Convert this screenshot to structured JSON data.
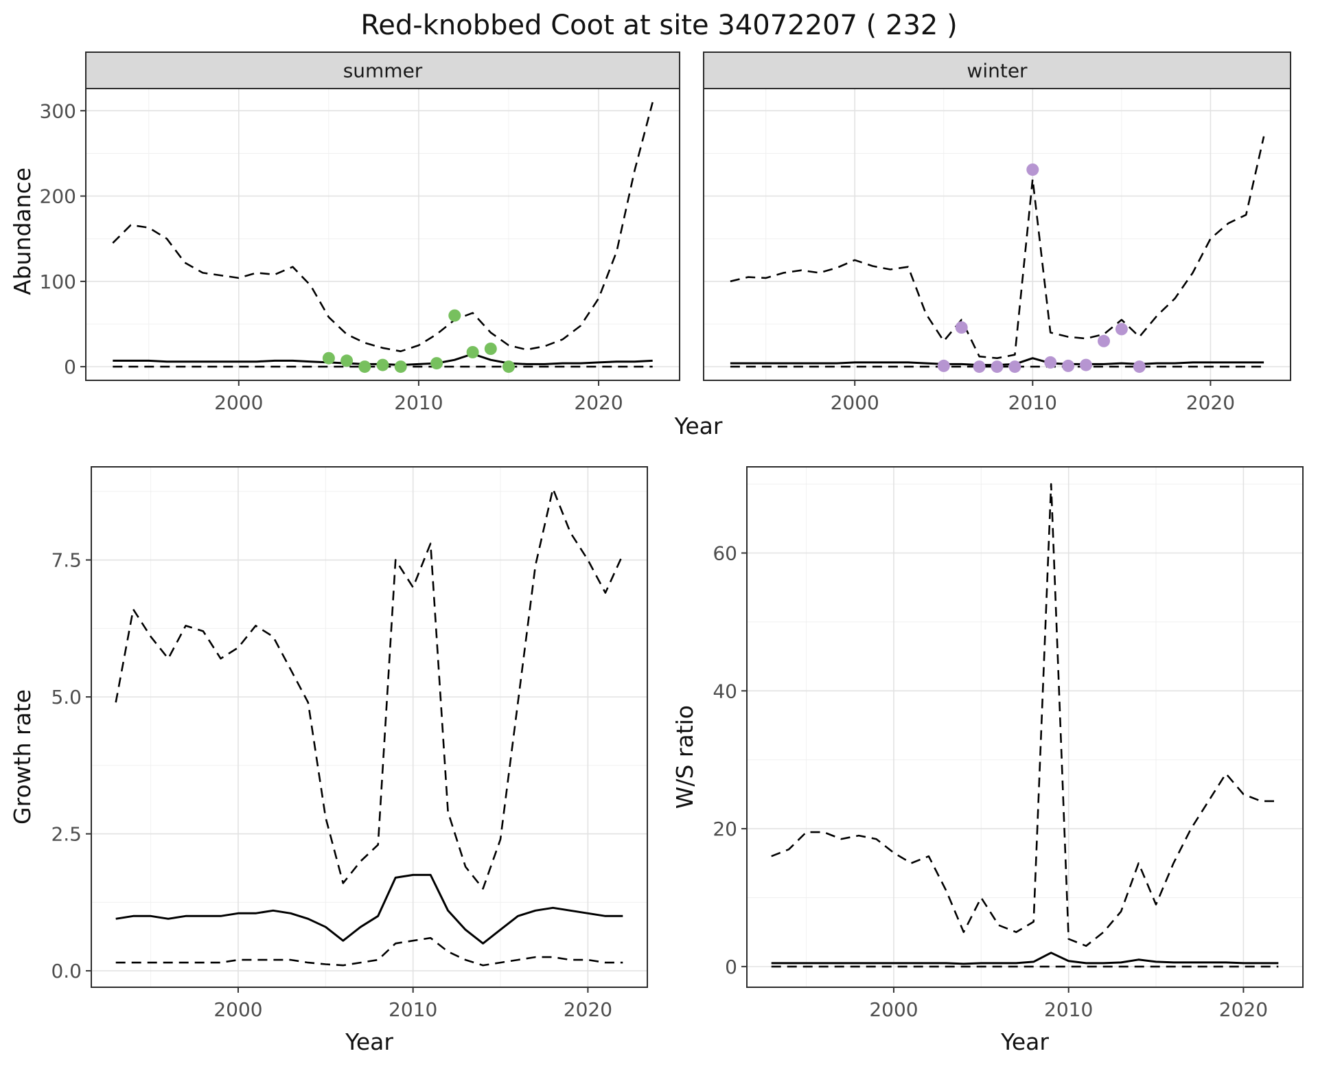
{
  "title": "Red-knobbed Coot at site 34072207 ( 232 )",
  "labels": {
    "year": "Year",
    "abundance": "Abundance",
    "growth_rate": "Growth rate",
    "ws_ratio": "W/S ratio"
  },
  "colors": {
    "summer_points": "#77C05E",
    "winter_points": "#B695D1",
    "line": "#000000",
    "strip_bg": "#D9D9D9",
    "grid_major": "#E2E2E2",
    "grid_minor": "#F0F0F0",
    "panel_border": "#2B2B2B"
  },
  "chart_data": [
    {
      "id": "abundance-summer",
      "type": "line",
      "facet": "summer",
      "xlabel": "Year",
      "ylabel": "Abundance",
      "legend": "none",
      "grid": true,
      "xlim": [
        1991.5,
        2024.5
      ],
      "ylim": [
        -16,
        326
      ],
      "xticks": [
        2000,
        2010,
        2020
      ],
      "xtick_labels": [
        "2000",
        "2010",
        "2020"
      ],
      "yticks": [
        0,
        100,
        200,
        300
      ],
      "ytick_labels": [
        "0",
        "100",
        "200",
        "300"
      ],
      "x": [
        1993,
        1994,
        1995,
        1996,
        1997,
        1998,
        1999,
        2000,
        2001,
        2002,
        2003,
        2004,
        2005,
        2006,
        2007,
        2008,
        2009,
        2010,
        2011,
        2012,
        2013,
        2014,
        2015,
        2016,
        2017,
        2018,
        2019,
        2020,
        2021,
        2022,
        2023
      ],
      "series": [
        {
          "name": "upper-ci",
          "style": "dashed",
          "values": [
            145,
            166,
            163,
            150,
            122,
            110,
            107,
            104,
            110,
            108,
            117,
            95,
            58,
            38,
            28,
            22,
            18,
            25,
            38,
            55,
            63,
            40,
            25,
            20,
            24,
            32,
            48,
            80,
            135,
            230,
            310
          ]
        },
        {
          "name": "median",
          "style": "solid",
          "values": [
            7,
            7,
            7,
            6,
            6,
            6,
            6,
            6,
            6,
            7,
            7,
            6,
            5,
            4,
            3,
            3,
            2,
            3,
            4,
            8,
            15,
            8,
            4,
            3,
            3,
            4,
            4,
            5,
            6,
            6,
            7
          ]
        },
        {
          "name": "lower-ci",
          "style": "dashed",
          "values": [
            0,
            0,
            0,
            0,
            0,
            0,
            0,
            0,
            0,
            0,
            0,
            0,
            0,
            0,
            0,
            0,
            0,
            0,
            0,
            0,
            0,
            0,
            0,
            0,
            0,
            0,
            0,
            0,
            0,
            0,
            0
          ]
        }
      ],
      "points": {
        "name": "summer-observations",
        "color": "#77C05E",
        "x": [
          2005,
          2006,
          2007,
          2008,
          2009,
          2011,
          2012,
          2013,
          2014,
          2015
        ],
        "y": [
          10,
          7,
          0,
          2,
          0,
          4,
          60,
          17,
          21,
          0
        ]
      }
    },
    {
      "id": "abundance-winter",
      "type": "line",
      "facet": "winter",
      "xlabel": "Year",
      "ylabel": "Abundance",
      "legend": "none",
      "grid": true,
      "xlim": [
        1991.5,
        2024.5
      ],
      "ylim": [
        -16,
        326
      ],
      "xticks": [
        2000,
        2010,
        2020
      ],
      "xtick_labels": [
        "2000",
        "2010",
        "2020"
      ],
      "yticks": [
        0,
        100,
        200,
        300
      ],
      "ytick_labels": [
        "0",
        "100",
        "200",
        "300"
      ],
      "x": [
        1993,
        1994,
        1995,
        1996,
        1997,
        1998,
        1999,
        2000,
        2001,
        2002,
        2003,
        2004,
        2005,
        2006,
        2007,
        2008,
        2009,
        2010,
        2011,
        2012,
        2013,
        2014,
        2015,
        2016,
        2017,
        2018,
        2019,
        2020,
        2021,
        2022,
        2023
      ],
      "series": [
        {
          "name": "upper-ci",
          "style": "dashed",
          "values": [
            100,
            105,
            104,
            110,
            113,
            110,
            116,
            125,
            118,
            114,
            117,
            62,
            30,
            55,
            12,
            10,
            14,
            220,
            40,
            35,
            33,
            38,
            55,
            35,
            60,
            80,
            110,
            150,
            168,
            178,
            270
          ]
        },
        {
          "name": "median",
          "style": "solid",
          "values": [
            4,
            4,
            4,
            4,
            4,
            4,
            4,
            5,
            5,
            5,
            5,
            4,
            3,
            3,
            2,
            2,
            3,
            10,
            4,
            3,
            3,
            3,
            4,
            3,
            4,
            4,
            5,
            5,
            5,
            5,
            5
          ]
        },
        {
          "name": "lower-ci",
          "style": "dashed",
          "values": [
            0,
            0,
            0,
            0,
            0,
            0,
            0,
            0,
            0,
            0,
            0,
            0,
            0,
            0,
            0,
            0,
            0,
            0,
            0,
            0,
            0,
            0,
            0,
            0,
            0,
            0,
            0,
            0,
            0,
            0,
            0
          ]
        }
      ],
      "points": {
        "name": "winter-observations",
        "color": "#B695D1",
        "x": [
          2005,
          2006,
          2007,
          2008,
          2009,
          2010,
          2011,
          2012,
          2013,
          2014,
          2015,
          2016
        ],
        "y": [
          1,
          46,
          0,
          0,
          0,
          231,
          5,
          1,
          2,
          30,
          44,
          0
        ]
      }
    },
    {
      "id": "growth-rate",
      "type": "line",
      "facet": "",
      "xlabel": "Year",
      "ylabel": "Growth rate",
      "legend": "none",
      "grid": true,
      "xlim": [
        1991.6,
        2023.4
      ],
      "ylim": [
        -0.3,
        9.2
      ],
      "xticks": [
        2000,
        2010,
        2020
      ],
      "xtick_labels": [
        "2000",
        "2010",
        "2020"
      ],
      "yticks": [
        0,
        2.5,
        5,
        7.5
      ],
      "ytick_labels": [
        "0.0",
        "2.5",
        "5.0",
        "7.5"
      ],
      "x": [
        1993,
        1994,
        1995,
        1996,
        1997,
        1998,
        1999,
        2000,
        2001,
        2002,
        2003,
        2004,
        2005,
        2006,
        2007,
        2008,
        2009,
        2010,
        2011,
        2012,
        2013,
        2014,
        2015,
        2016,
        2017,
        2018,
        2019,
        2020,
        2021,
        2022
      ],
      "series": [
        {
          "name": "upper-ci",
          "style": "dashed",
          "values": [
            4.9,
            6.6,
            6.1,
            5.7,
            6.3,
            6.2,
            5.7,
            5.9,
            6.3,
            6.1,
            5.5,
            4.9,
            2.8,
            1.6,
            2.0,
            2.3,
            7.5,
            7.0,
            7.8,
            2.9,
            1.9,
            1.5,
            2.4,
            4.9,
            7.4,
            8.8,
            8.0,
            7.5,
            6.9,
            7.6
          ]
        },
        {
          "name": "median",
          "style": "solid",
          "values": [
            0.95,
            1.0,
            1.0,
            0.95,
            1.0,
            1.0,
            1.0,
            1.05,
            1.05,
            1.1,
            1.05,
            0.95,
            0.8,
            0.55,
            0.8,
            1.0,
            1.7,
            1.75,
            1.75,
            1.1,
            0.75,
            0.5,
            0.75,
            1.0,
            1.1,
            1.15,
            1.1,
            1.05,
            1.0,
            1.0
          ]
        },
        {
          "name": "lower-ci",
          "style": "dashed",
          "values": [
            0.15,
            0.15,
            0.15,
            0.15,
            0.15,
            0.15,
            0.15,
            0.2,
            0.2,
            0.2,
            0.2,
            0.15,
            0.12,
            0.1,
            0.15,
            0.2,
            0.5,
            0.55,
            0.6,
            0.35,
            0.2,
            0.1,
            0.15,
            0.2,
            0.25,
            0.25,
            0.2,
            0.2,
            0.15,
            0.15
          ]
        }
      ],
      "points": null
    },
    {
      "id": "ws-ratio",
      "type": "line",
      "facet": "",
      "xlabel": "Year",
      "ylabel": "W/S ratio",
      "legend": "none",
      "grid": true,
      "xlim": [
        1991.6,
        2023.4
      ],
      "ylim": [
        -3,
        72.5
      ],
      "xticks": [
        2000,
        2010,
        2020
      ],
      "xtick_labels": [
        "2000",
        "2010",
        "2020"
      ],
      "yticks": [
        0,
        20,
        40,
        60
      ],
      "ytick_labels": [
        "0",
        "20",
        "40",
        "60"
      ],
      "x": [
        1993,
        1994,
        1995,
        1996,
        1997,
        1998,
        1999,
        2000,
        2001,
        2002,
        2003,
        2004,
        2005,
        2006,
        2007,
        2008,
        2009,
        2010,
        2011,
        2012,
        2013,
        2014,
        2015,
        2016,
        2017,
        2018,
        2019,
        2020,
        2021,
        2022
      ],
      "series": [
        {
          "name": "upper-ci",
          "style": "dashed",
          "values": [
            16,
            17,
            19.5,
            19.5,
            18.5,
            19,
            18.5,
            16.5,
            15,
            16,
            11,
            5,
            10,
            6,
            5,
            6.5,
            70,
            4,
            3,
            5,
            8,
            15,
            9,
            15,
            20,
            24,
            28,
            25,
            24,
            24
          ]
        },
        {
          "name": "median",
          "style": "solid",
          "values": [
            0.5,
            0.5,
            0.5,
            0.5,
            0.5,
            0.5,
            0.5,
            0.5,
            0.5,
            0.5,
            0.5,
            0.4,
            0.5,
            0.5,
            0.5,
            0.7,
            2.0,
            0.8,
            0.5,
            0.5,
            0.6,
            1.0,
            0.7,
            0.6,
            0.6,
            0.6,
            0.6,
            0.5,
            0.5,
            0.5
          ]
        },
        {
          "name": "lower-ci",
          "style": "dashed",
          "values": [
            0,
            0,
            0,
            0,
            0,
            0,
            0,
            0,
            0,
            0,
            0,
            0,
            0,
            0,
            0,
            0,
            0,
            0,
            0,
            0,
            0,
            0,
            0,
            0,
            0,
            0,
            0,
            0,
            0,
            0
          ]
        }
      ],
      "points": null
    }
  ]
}
